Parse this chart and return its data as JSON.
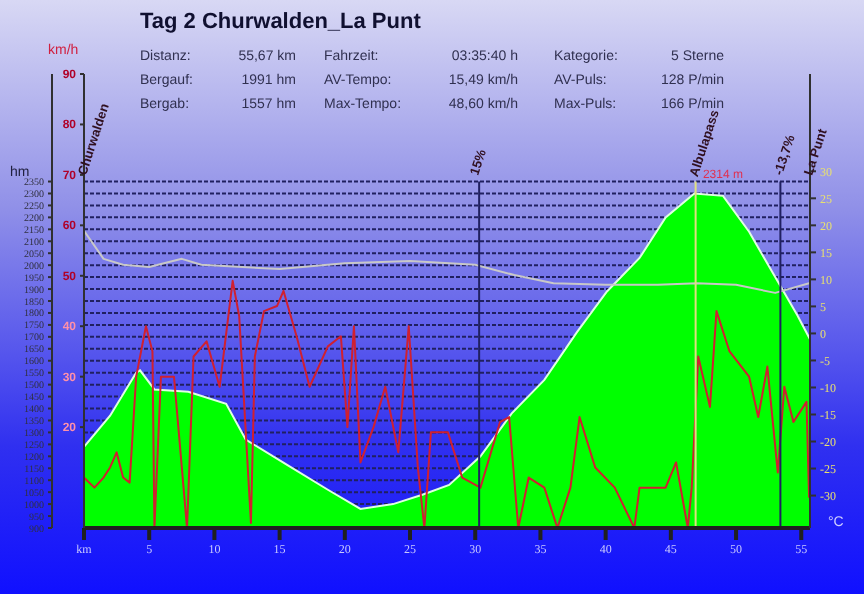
{
  "chart_data": {
    "type": "area",
    "title": "Tag 2 Churwalden_La Punt",
    "annotations": [
      "Distanz:",
      "55,67 km",
      "Fahrzeit:",
      "03:35:40 h",
      "Kategorie:",
      "5 Sterne",
      "Bergauf:",
      "1991 hm",
      "AV-Tempo:",
      "15,49 km/h",
      "AV-Puls:",
      "128 P/min",
      "Bergab:",
      "1557 hm",
      "Max-Tempo:",
      "48,60 km/h",
      "Max-Puls:",
      "166 P/min",
      {
        "text": "2314 m",
        "x": 47,
        "y": 2314
      },
      "Churwalden",
      "15%",
      "-13,7%",
      "La Punt"
    ],
    "xlim": [
      0,
      55.67
    ],
    "xticks": [
      {
        "value": 0,
        "label": "km"
      },
      5,
      10,
      15,
      20,
      25,
      30,
      35,
      40,
      45,
      50,
      55
    ],
    "ylabel": "hm",
    "ylim": [
      900,
      2800
    ],
    "yticks": [
      900,
      950,
      1000,
      1050,
      1100,
      1150,
      1200,
      1250,
      1300,
      1350,
      1400,
      1450,
      1500,
      1550,
      1600,
      1650,
      1700,
      1750,
      1800,
      1850,
      1900,
      1950,
      2000,
      2050,
      2100,
      2150,
      2200,
      2250,
      2300,
      2350
    ],
    "y2label": "km/h",
    "y2lim": [
      0,
      90
    ],
    "y2ticks": [
      20,
      30,
      40,
      50,
      60,
      70,
      80,
      90
    ],
    "y3label": "°C",
    "y3lim": [
      -36,
      48
    ],
    "y3ticks": [
      -30,
      -25,
      -20,
      -15,
      -10,
      -5,
      0,
      5,
      10,
      15,
      20,
      25,
      30
    ],
    "grid": "y",
    "ref_lines": [
      {
        "axis": "x",
        "value": 30.3,
        "color": "#202060"
      },
      {
        "axis": "x",
        "value": 46.9,
        "label": "Albulapass",
        "color": "#e0e080"
      },
      {
        "axis": "x",
        "value": 53.4,
        "color": "#202060"
      }
    ],
    "series": [
      {
        "type": "area",
        "color": "#00ff00",
        "x": [
          0,
          2,
          4,
          4.3,
          5.4,
          8,
          10.9,
          12.4,
          15.7,
          18.7,
          21.2,
          23.7,
          26,
          28,
          30.4,
          32.8,
          35.3,
          37.8,
          40.1,
          42.6,
          44.6,
          46.8,
          49,
          51,
          53,
          54.7,
          55.67
        ],
        "values": [
          1240,
          1370,
          1550,
          1560,
          1480,
          1470,
          1420,
          1270,
          1160,
          1060,
          980,
          1000,
          1040,
          1080,
          1200,
          1380,
          1520,
          1720,
          1890,
          2030,
          2200,
          2300,
          2290,
          2140,
          1950,
          1790,
          1690
        ]
      },
      {
        "type": "line",
        "axis": "y2",
        "color": "#d02030",
        "x": [
          0,
          0.8,
          1.5,
          2,
          2.5,
          3,
          3.5,
          4.0,
          4.75,
          5.25,
          5.4,
          5.9,
          6.9,
          7.9,
          8.4,
          9.4,
          10.4,
          11.4,
          11.9,
          12.8,
          13.1,
          13.8,
          14.8,
          15.3,
          16.3,
          17.3,
          18.7,
          19.7,
          20.2,
          20.7,
          21.2,
          22.2,
          23.1,
          24.1,
          24.9,
          25.6,
          26.1,
          26.6,
          27.9,
          29,
          30.4,
          31.9,
          32.6,
          33.3,
          34.1,
          35.3,
          36.3,
          37.3,
          38,
          39.2,
          40.7,
          42.2,
          42.6,
          44.6,
          45.4,
          46.3,
          46.6,
          47.1,
          48,
          48.5,
          49.5,
          51,
          51.7,
          52.4,
          53.2,
          53.7,
          54.4,
          55.4,
          55.6
        ],
        "values": [
          10,
          8,
          10,
          12,
          15,
          10,
          9,
          30,
          40,
          35,
          0,
          30,
          30,
          0,
          34,
          37,
          28,
          49,
          42,
          1,
          34,
          43,
          44,
          47,
          38,
          28,
          36,
          38,
          20,
          40,
          13,
          20,
          28,
          15,
          40,
          12,
          0,
          19,
          19,
          10,
          8,
          21,
          22,
          0,
          10,
          8,
          0,
          8,
          22,
          12,
          8,
          0,
          8,
          8,
          13,
          0,
          8,
          34,
          24,
          43,
          35,
          30,
          22,
          32,
          11,
          28,
          21,
          25,
          6
        ]
      },
      {
        "type": "line",
        "axis": "y3",
        "color": "#c8c8c8",
        "x": [
          0,
          1.5,
          3,
          5,
          7.5,
          9,
          15,
          20,
          25,
          28,
          30,
          33,
          36,
          40,
          44,
          47,
          50,
          53,
          55.6
        ],
        "values": [
          19,
          13.8,
          12.7,
          12.3,
          13.8,
          12.7,
          11.9,
          13,
          13.4,
          13,
          12.7,
          10.8,
          9.3,
          9,
          9,
          9.3,
          9,
          7.5,
          9.3
        ]
      }
    ]
  }
}
